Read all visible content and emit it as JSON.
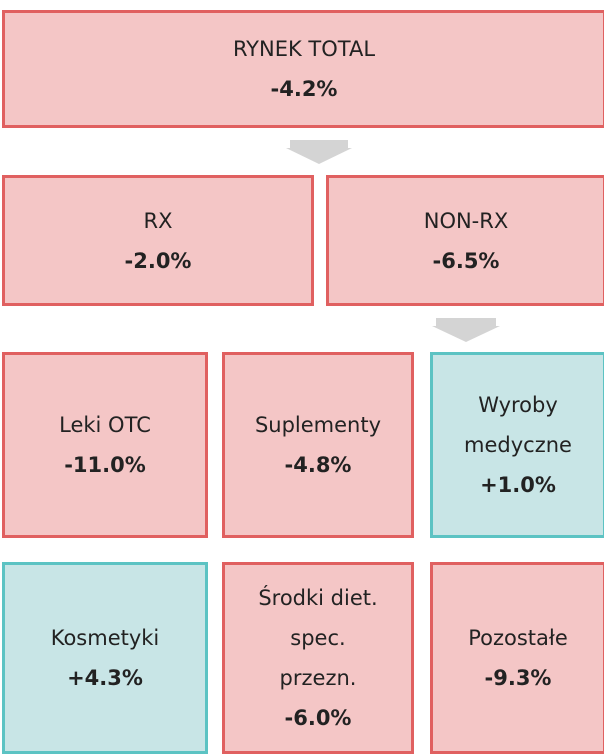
{
  "nodes": [
    {
      "lines": [
        "RYNEK TOTAL"
      ],
      "value": "-4.2%",
      "fill": "#f4c6c6",
      "stroke": "#e06060"
    },
    {
      "lines": [
        "RX"
      ],
      "value": "-2.0%",
      "fill": "#f4c6c6",
      "stroke": "#e06060"
    },
    {
      "lines": [
        "NON-RX"
      ],
      "value": "-6.5%",
      "fill": "#f4c6c6",
      "stroke": "#e06060"
    },
    {
      "lines": [
        "Leki OTC"
      ],
      "value": "-11.0%",
      "fill": "#f4c6c6",
      "stroke": "#e06060"
    },
    {
      "lines": [
        "Suplementy"
      ],
      "value": "-4.8%",
      "fill": "#f4c6c6",
      "stroke": "#e06060"
    },
    {
      "lines": [
        "Wyroby",
        "medyczne"
      ],
      "value": "+1.0%",
      "fill": "#c8e5e6",
      "stroke": "#5cc3c3"
    },
    {
      "lines": [
        "Kosmetyki"
      ],
      "value": "+4.3%",
      "fill": "#c8e5e6",
      "stroke": "#5cc3c3"
    },
    {
      "lines": [
        "Środki diet.",
        "spec.",
        "przezn."
      ],
      "value": "-6.0%",
      "fill": "#f4c6c6",
      "stroke": "#e06060"
    },
    {
      "lines": [
        "Pozostałe"
      ],
      "value": "-9.3%",
      "fill": "#f4c6c6",
      "stroke": "#e06060"
    }
  ]
}
